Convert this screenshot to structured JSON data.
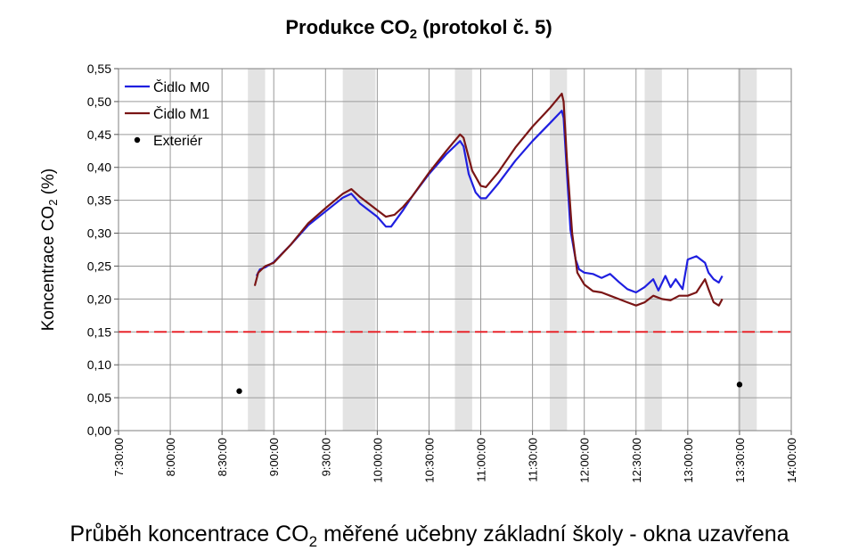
{
  "caption": {
    "before": "Průběh koncentrace CO",
    "sub": "2",
    "after": " měřené učebny základní školy - okna uzavřena"
  },
  "chart_data": {
    "type": "line",
    "title": {
      "before": "Produkce CO",
      "sub": "2",
      "after": " (protokol č. 5)"
    },
    "ylabel": {
      "before": "Koncentrace CO",
      "sub": "2",
      "after": " (%)"
    },
    "xlabel": "",
    "x_ticks": [
      "7:30:00",
      "8:00:00",
      "8:30:00",
      "9:00:00",
      "9:30:00",
      "10:00:00",
      "10:30:00",
      "11:00:00",
      "11:30:00",
      "12:00:00",
      "12:30:00",
      "13:00:00",
      "13:30:00",
      "14:00:00"
    ],
    "x_range": [
      "7:30:00",
      "14:00:00"
    ],
    "y_ticks": [
      "0,00",
      "0,05",
      "0,10",
      "0,15",
      "0,20",
      "0,25",
      "0,30",
      "0,35",
      "0,40",
      "0,45",
      "0,50",
      "0,55"
    ],
    "ylim": [
      0,
      0.55
    ],
    "grid": true,
    "legend_position": "top-left",
    "shaded_periods": [
      [
        "8:45:00",
        "8:55:00"
      ],
      [
        "9:40:00",
        "9:59:00"
      ],
      [
        "10:45:00",
        "10:55:00"
      ],
      [
        "11:40:00",
        "11:50:00"
      ],
      [
        "12:35:00",
        "12:45:00"
      ],
      [
        "13:29:00",
        "13:40:00"
      ]
    ],
    "reference_line": {
      "y": 0.15,
      "color": "#e8252b",
      "style": "dashed"
    },
    "series": [
      {
        "name": "Čidlo M0",
        "color": "#1f1fe0",
        "points": [
          [
            "8:50:00",
            0.235
          ],
          [
            "8:52:00",
            0.245
          ],
          [
            "8:55:00",
            0.248
          ],
          [
            "9:00:00",
            0.256
          ],
          [
            "9:10:00",
            0.283
          ],
          [
            "9:20:00",
            0.312
          ],
          [
            "9:30:00",
            0.333
          ],
          [
            "9:40:00",
            0.354
          ],
          [
            "9:45:00",
            0.36
          ],
          [
            "9:50:00",
            0.345
          ],
          [
            "10:00:00",
            0.325
          ],
          [
            "10:05:00",
            0.31
          ],
          [
            "10:08:00",
            0.31
          ],
          [
            "10:15:00",
            0.335
          ],
          [
            "10:20:00",
            0.355
          ],
          [
            "10:30:00",
            0.39
          ],
          [
            "10:40:00",
            0.42
          ],
          [
            "10:48:00",
            0.44
          ],
          [
            "10:50:00",
            0.432
          ],
          [
            "10:53:00",
            0.39
          ],
          [
            "10:57:00",
            0.362
          ],
          [
            "11:00:00",
            0.353
          ],
          [
            "11:03:00",
            0.353
          ],
          [
            "11:10:00",
            0.375
          ],
          [
            "11:20:00",
            0.41
          ],
          [
            "11:30:00",
            0.44
          ],
          [
            "11:40:00",
            0.467
          ],
          [
            "11:47:00",
            0.486
          ],
          [
            "11:48:00",
            0.475
          ],
          [
            "11:50:00",
            0.39
          ],
          [
            "11:52:00",
            0.305
          ],
          [
            "11:55:00",
            0.26
          ],
          [
            "11:57:00",
            0.245
          ],
          [
            "12:00:00",
            0.24
          ],
          [
            "12:05:00",
            0.238
          ],
          [
            "12:10:00",
            0.232
          ],
          [
            "12:15:00",
            0.238
          ],
          [
            "12:20:00",
            0.226
          ],
          [
            "12:25:00",
            0.215
          ],
          [
            "12:30:00",
            0.21
          ],
          [
            "12:35:00",
            0.218
          ],
          [
            "12:40:00",
            0.23
          ],
          [
            "12:43:00",
            0.213
          ],
          [
            "12:47:00",
            0.235
          ],
          [
            "12:50:00",
            0.218
          ],
          [
            "12:53:00",
            0.23
          ],
          [
            "12:57:00",
            0.215
          ],
          [
            "13:00:00",
            0.26
          ],
          [
            "13:05:00",
            0.265
          ],
          [
            "13:10:00",
            0.255
          ],
          [
            "13:12:00",
            0.24
          ],
          [
            "13:15:00",
            0.23
          ],
          [
            "13:18:00",
            0.225
          ],
          [
            "13:20:00",
            0.235
          ]
        ]
      },
      {
        "name": "Čidlo M1",
        "color": "#7a1515",
        "points": [
          [
            "8:49:00",
            0.22
          ],
          [
            "8:51:00",
            0.24
          ],
          [
            "8:55:00",
            0.25
          ],
          [
            "9:00:00",
            0.255
          ],
          [
            "9:10:00",
            0.283
          ],
          [
            "9:20:00",
            0.315
          ],
          [
            "9:30:00",
            0.338
          ],
          [
            "9:40:00",
            0.36
          ],
          [
            "9:45:00",
            0.367
          ],
          [
            "9:50:00",
            0.355
          ],
          [
            "10:00:00",
            0.335
          ],
          [
            "10:05:00",
            0.325
          ],
          [
            "10:10:00",
            0.328
          ],
          [
            "10:15:00",
            0.34
          ],
          [
            "10:20:00",
            0.355
          ],
          [
            "10:30:00",
            0.392
          ],
          [
            "10:40:00",
            0.425
          ],
          [
            "10:48:00",
            0.45
          ],
          [
            "10:50:00",
            0.445
          ],
          [
            "10:55:00",
            0.395
          ],
          [
            "11:00:00",
            0.372
          ],
          [
            "11:03:00",
            0.37
          ],
          [
            "11:10:00",
            0.392
          ],
          [
            "11:20:00",
            0.43
          ],
          [
            "11:30:00",
            0.462
          ],
          [
            "11:40:00",
            0.49
          ],
          [
            "11:47:00",
            0.512
          ],
          [
            "11:48:00",
            0.5
          ],
          [
            "11:50:00",
            0.41
          ],
          [
            "11:53:00",
            0.3
          ],
          [
            "11:56:00",
            0.24
          ],
          [
            "12:00:00",
            0.222
          ],
          [
            "12:05:00",
            0.212
          ],
          [
            "12:10:00",
            0.21
          ],
          [
            "12:15:00",
            0.205
          ],
          [
            "12:20:00",
            0.2
          ],
          [
            "12:25:00",
            0.195
          ],
          [
            "12:30:00",
            0.19
          ],
          [
            "12:35:00",
            0.195
          ],
          [
            "12:40:00",
            0.205
          ],
          [
            "12:45:00",
            0.2
          ],
          [
            "12:50:00",
            0.198
          ],
          [
            "12:55:00",
            0.205
          ],
          [
            "13:00:00",
            0.205
          ],
          [
            "13:05:00",
            0.21
          ],
          [
            "13:10:00",
            0.23
          ],
          [
            "13:12:00",
            0.215
          ],
          [
            "13:15:00",
            0.195
          ],
          [
            "13:18:00",
            0.19
          ],
          [
            "13:20:00",
            0.2
          ]
        ]
      },
      {
        "name": "Exteriér",
        "color": "#000000",
        "type": "scatter",
        "points": [
          [
            "8:40:00",
            0.06
          ],
          [
            "13:30:00",
            0.07
          ]
        ]
      }
    ]
  }
}
